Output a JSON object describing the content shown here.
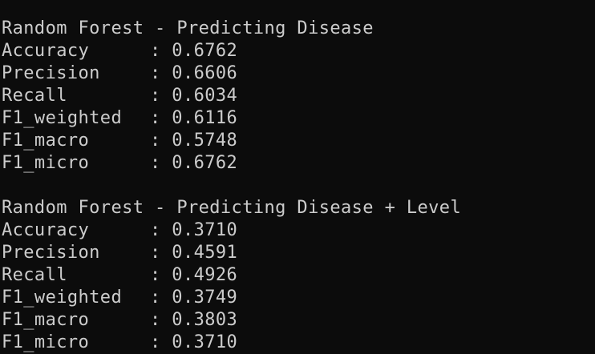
{
  "terminal": {
    "sections": [
      {
        "title": "Random Forest - Predicting Disease",
        "metrics": [
          {
            "name": "Accuracy",
            "value": "0.6762"
          },
          {
            "name": "Precision",
            "value": "0.6606"
          },
          {
            "name": "Recall",
            "value": "0.6034"
          },
          {
            "name": "F1_weighted",
            "value": "0.6116"
          },
          {
            "name": "F1_macro",
            "value": "0.5748"
          },
          {
            "name": "F1_micro",
            "value": "0.6762"
          }
        ]
      },
      {
        "title": "Random Forest - Predicting Disease + Level",
        "metrics": [
          {
            "name": "Accuracy",
            "value": "0.3710"
          },
          {
            "name": "Precision",
            "value": "0.4591"
          },
          {
            "name": "Recall",
            "value": "0.4926"
          },
          {
            "name": "F1_weighted",
            "value": "0.3749"
          },
          {
            "name": "F1_macro",
            "value": "0.3803"
          },
          {
            "name": "F1_micro",
            "value": "0.3710"
          }
        ]
      }
    ],
    "separator": ": ",
    "colors": {
      "background": "#0c0c0c",
      "text": "#cccccc"
    }
  }
}
